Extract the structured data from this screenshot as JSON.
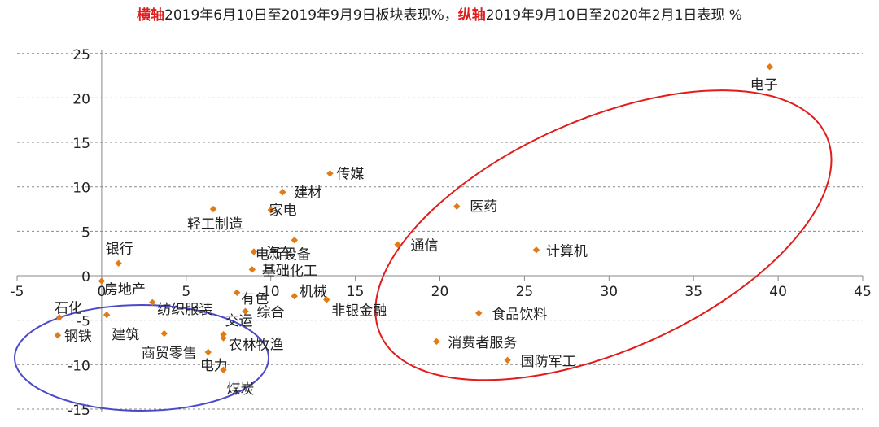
{
  "title": {
    "x_label_prefix": "横轴",
    "x_label_text": "2019年6月10日至2019年9月9日板块表现%，",
    "y_label_prefix": "纵轴",
    "y_label_text": "2019年9月10日至2020年2月1日表现 %"
  },
  "colors": {
    "marker": "#e07b16",
    "highlight_red": "#e21b1b",
    "highlight_blue": "#4a4ac8",
    "title_accent": "#e21b1b"
  },
  "chart_data": {
    "type": "scatter",
    "xlim": [
      -5,
      45
    ],
    "ylim": [
      -15,
      25
    ],
    "x_ticks": [
      -5,
      0,
      5,
      10,
      15,
      20,
      25,
      30,
      35,
      40,
      45
    ],
    "y_ticks": [
      -15,
      -10,
      -5,
      0,
      5,
      10,
      15,
      20,
      25
    ],
    "grid": "horizontal-dashed",
    "points": [
      {
        "label": "电子",
        "x": 39.5,
        "y": 23.5
      },
      {
        "label": "传媒",
        "x": 13.5,
        "y": 11.5
      },
      {
        "label": "建材",
        "x": 10.7,
        "y": 9.4
      },
      {
        "label": "家电",
        "x": 10.0,
        "y": 7.4
      },
      {
        "label": "轻工制造",
        "x": 6.6,
        "y": 7.5
      },
      {
        "label": "电新设备",
        "x": 11.4,
        "y": 4.0
      },
      {
        "label": "医药",
        "x": 21.0,
        "y": 7.8
      },
      {
        "label": "通信",
        "x": 17.5,
        "y": 3.5
      },
      {
        "label": "计算机",
        "x": 25.7,
        "y": 2.9
      },
      {
        "label": "汽车",
        "x": 9.0,
        "y": 2.7
      },
      {
        "label": "银行",
        "x": 1.0,
        "y": 1.4
      },
      {
        "label": "基础化工",
        "x": 8.9,
        "y": 0.7
      },
      {
        "label": "房地产",
        "x": 0.0,
        "y": -0.6
      },
      {
        "label": "有色",
        "x": 8.0,
        "y": -1.9
      },
      {
        "label": "机械",
        "x": 11.4,
        "y": -2.3
      },
      {
        "label": "非银金融",
        "x": 13.3,
        "y": -2.7
      },
      {
        "label": "纺织服装",
        "x": 3.0,
        "y": -3.0
      },
      {
        "label": "综合",
        "x": 8.5,
        "y": -4.0
      },
      {
        "label": "石化",
        "x": -2.5,
        "y": -4.7
      },
      {
        "label": "建筑",
        "x": 0.3,
        "y": -4.4
      },
      {
        "label": "钢铁",
        "x": -2.6,
        "y": -6.7
      },
      {
        "label": "商贸零售",
        "x": 3.7,
        "y": -6.5
      },
      {
        "label": "交运",
        "x": 7.2,
        "y": -6.6
      },
      {
        "label": "农林牧渔",
        "x": 7.2,
        "y": -7.0
      },
      {
        "label": "电力",
        "x": 6.3,
        "y": -8.6
      },
      {
        "label": "煤炭",
        "x": 7.2,
        "y": -10.6
      },
      {
        "label": "食品饮料",
        "x": 22.3,
        "y": -4.2
      },
      {
        "label": "消费者服务",
        "x": 19.8,
        "y": -7.4
      },
      {
        "label": "国防军工",
        "x": 24.0,
        "y": -9.5
      }
    ]
  }
}
